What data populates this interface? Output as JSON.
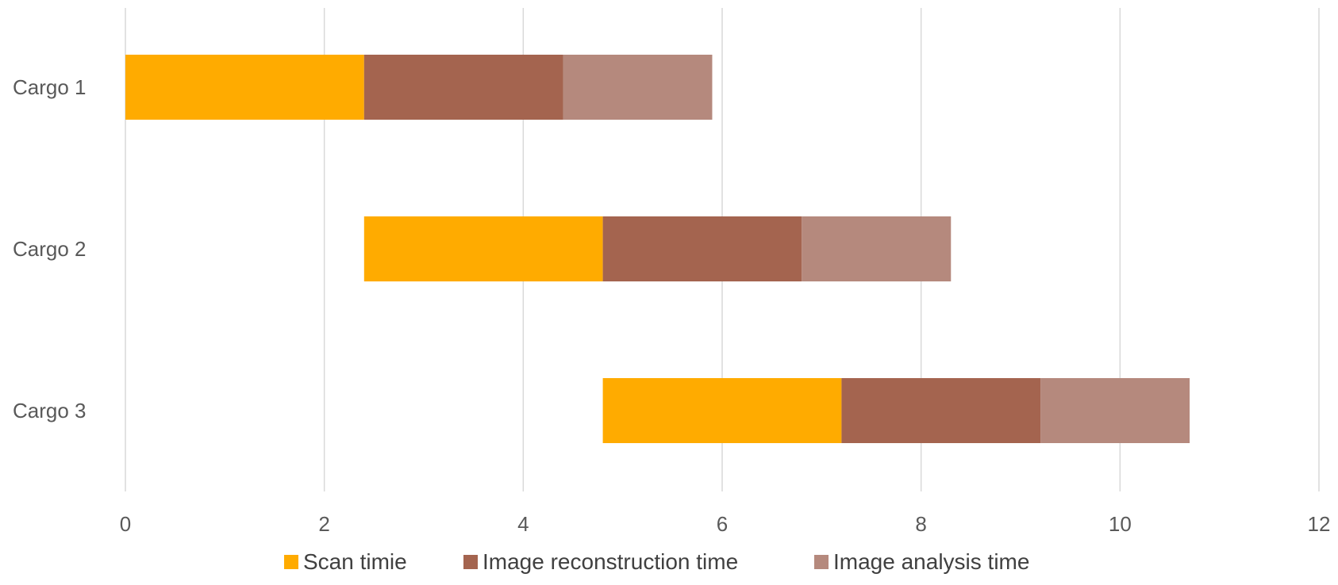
{
  "chart_data": {
    "type": "bar",
    "orientation": "horizontal",
    "stacked": true,
    "categories": [
      "Cargo 1",
      "Cargo 2",
      "Cargo 3"
    ],
    "offsets": [
      0,
      2.4,
      4.8
    ],
    "series": [
      {
        "name": "Scan timie",
        "values": [
          2.4,
          2.4,
          2.4
        ],
        "color": "#ffab00"
      },
      {
        "name": "Image reconstruction time",
        "values": [
          2.0,
          2.0,
          2.0
        ],
        "color": "#a4644f"
      },
      {
        "name": "Image analysis time",
        "values": [
          1.5,
          1.5,
          1.5
        ],
        "color": "#b5897d"
      }
    ],
    "xlim": [
      0,
      12
    ],
    "xticks": [
      "0",
      "2",
      "4",
      "6",
      "8",
      "10",
      "12"
    ],
    "grid": true,
    "legend": "bottom",
    "title": "",
    "xlabel": "",
    "ylabel": ""
  }
}
